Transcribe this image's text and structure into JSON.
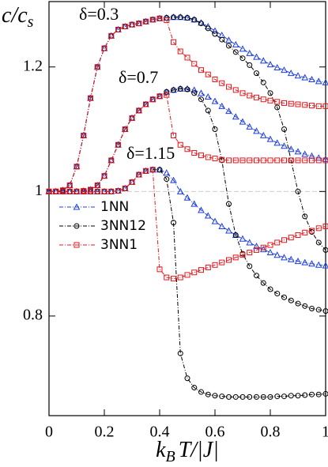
{
  "chart_data": {
    "type": "line",
    "ylabel": [
      "c/c",
      "s"
    ],
    "xlabel": [
      "k",
      "B",
      "T/|J|"
    ],
    "annotations": [
      "δ=0.3",
      "δ=0.7",
      "δ=1.15"
    ],
    "reference_line": 1,
    "xlim": [
      0,
      1
    ],
    "xticks": [
      0,
      0.2,
      0.4,
      0.6,
      0.8,
      1
    ],
    "ylim": [
      0.64,
      1.305
    ],
    "yticks": [
      0.8,
      1,
      1.2
    ],
    "grid": false,
    "legend": "lower left",
    "x": [
      0,
      0.025,
      0.05,
      0.075,
      0.1,
      0.125,
      0.15,
      0.175,
      0.2,
      0.225,
      0.25,
      0.275,
      0.3,
      0.325,
      0.35,
      0.375,
      0.4,
      0.425,
      0.45,
      0.475,
      0.5,
      0.525,
      0.55,
      0.575,
      0.6,
      0.625,
      0.65,
      0.675,
      0.7,
      0.725,
      0.75,
      0.775,
      0.8,
      0.825,
      0.85,
      0.875,
      0.9,
      0.925,
      0.95,
      0.975,
      1
    ],
    "series": [
      {
        "name": "1NN",
        "color": "#1c3de0",
        "marker": "triangle",
        "values": [
          [
            1,
            1,
            1.002,
            1.01,
            1.04,
            1.09,
            1.15,
            1.2,
            1.23,
            1.25,
            1.26,
            1.265,
            1.268,
            1.27,
            1.273,
            1.276,
            1.278,
            1.279,
            1.28,
            1.28,
            1.279,
            1.276,
            1.271,
            1.265,
            1.258,
            1.251,
            1.243,
            1.236,
            1.229,
            1.222,
            1.216,
            1.21,
            1.204,
            1.199,
            1.195,
            1.19,
            1.186,
            1.183,
            1.18,
            1.177,
            1.175
          ],
          [
            1,
            1,
            1,
            1,
            1,
            1.001,
            1.003,
            1.01,
            1.025,
            1.05,
            1.075,
            1.1,
            1.118,
            1.13,
            1.14,
            1.148,
            1.153,
            1.16,
            1.163,
            1.165,
            1.165,
            1.163,
            1.158,
            1.152,
            1.145,
            1.137,
            1.129,
            1.12,
            1.112,
            1.104,
            1.097,
            1.09,
            1.084,
            1.078,
            1.073,
            1.068,
            1.064,
            1.06,
            1.057,
            1.054,
            1.052
          ],
          [
            1,
            1,
            1,
            1,
            1,
            1,
            1,
            1,
            1,
            1,
            1.001,
            1.005,
            1.015,
            1.027,
            1.033,
            1.035,
            1.035,
            1.03,
            1.018,
            1.0,
            0.99,
            0.98,
            0.97,
            0.961,
            0.952,
            0.944,
            0.937,
            0.93,
            0.924,
            0.918,
            0.912,
            0.907,
            0.902,
            0.898,
            0.894,
            0.891,
            0.888,
            0.886,
            0.884,
            0.882,
            0.881
          ]
        ]
      },
      {
        "name": "3NN12",
        "color": "#000000",
        "marker": "circle",
        "values": [
          [
            1,
            1,
            1.002,
            1.01,
            1.04,
            1.09,
            1.15,
            1.2,
            1.23,
            1.25,
            1.26,
            1.265,
            1.268,
            1.27,
            1.273,
            1.276,
            1.278,
            1.279,
            1.28,
            1.28,
            1.279,
            1.276,
            1.27,
            1.262,
            1.253,
            1.244,
            1.234,
            1.224,
            1.214,
            1.203,
            1.19,
            1.175,
            1.158,
            1.135,
            1.1,
            1.05,
            1.0,
            0.96,
            0.935,
            0.918,
            0.906
          ],
          [
            1,
            1,
            1,
            1,
            1,
            1.001,
            1.003,
            1.01,
            1.025,
            1.05,
            1.075,
            1.1,
            1.118,
            1.13,
            1.14,
            1.148,
            1.153,
            1.16,
            1.163,
            1.165,
            1.164,
            1.158,
            1.148,
            1.13,
            1.1,
            1.05,
            0.98,
            0.93,
            0.9,
            0.88,
            0.865,
            0.853,
            0.843,
            0.836,
            0.83,
            0.825,
            0.82,
            0.816,
            0.812,
            0.81,
            0.808
          ],
          [
            1,
            1,
            1,
            1,
            1,
            1,
            1,
            1,
            1,
            1,
            1.001,
            1.005,
            1.015,
            1.027,
            1.033,
            1.035,
            1.035,
            1.02,
            0.95,
            0.74,
            0.7,
            0.685,
            0.678,
            0.674,
            0.672,
            0.671,
            0.67,
            0.67,
            0.67,
            0.67,
            0.67,
            0.67,
            0.67,
            0.671,
            0.671,
            0.672,
            0.672,
            0.673,
            0.674,
            0.674,
            0.675
          ]
        ]
      },
      {
        "name": "3NN1",
        "color": "#e8161c",
        "marker": "square",
        "values": [
          [
            1,
            1,
            1.002,
            1.01,
            1.04,
            1.09,
            1.15,
            1.2,
            1.23,
            1.25,
            1.26,
            1.265,
            1.268,
            1.27,
            1.273,
            1.276,
            1.278,
            1.275,
            1.24,
            1.225,
            1.215,
            1.205,
            1.195,
            1.188,
            1.18,
            1.174,
            1.168,
            1.163,
            1.158,
            1.154,
            1.151,
            1.148,
            1.146,
            1.144,
            1.142,
            1.141,
            1.14,
            1.139,
            1.138,
            1.137,
            1.137
          ],
          [
            1,
            1,
            1,
            1,
            1,
            1.001,
            1.003,
            1.01,
            1.025,
            1.05,
            1.075,
            1.1,
            1.118,
            1.13,
            1.14,
            1.148,
            1.153,
            1.155,
            1.09,
            1.075,
            1.068,
            1.062,
            1.058,
            1.055,
            1.053,
            1.051,
            1.05,
            1.05,
            1.05,
            1.05,
            1.05,
            1.05,
            1.05,
            1.05,
            1.05,
            1.05,
            1.05,
            1.05,
            1.05,
            1.05,
            1.05
          ],
          [
            1,
            1,
            1,
            1,
            1,
            1,
            1,
            1,
            1,
            1,
            1.001,
            1.005,
            1.015,
            1.027,
            1.033,
            1.035,
            0.875,
            0.862,
            0.86,
            0.862,
            0.866,
            0.87,
            0.874,
            0.878,
            0.882,
            0.886,
            0.89,
            0.894,
            0.898,
            0.902,
            0.906,
            0.91,
            0.914,
            0.918,
            0.922,
            0.926,
            0.93,
            0.934,
            0.937,
            0.941,
            0.944
          ]
        ]
      }
    ]
  }
}
